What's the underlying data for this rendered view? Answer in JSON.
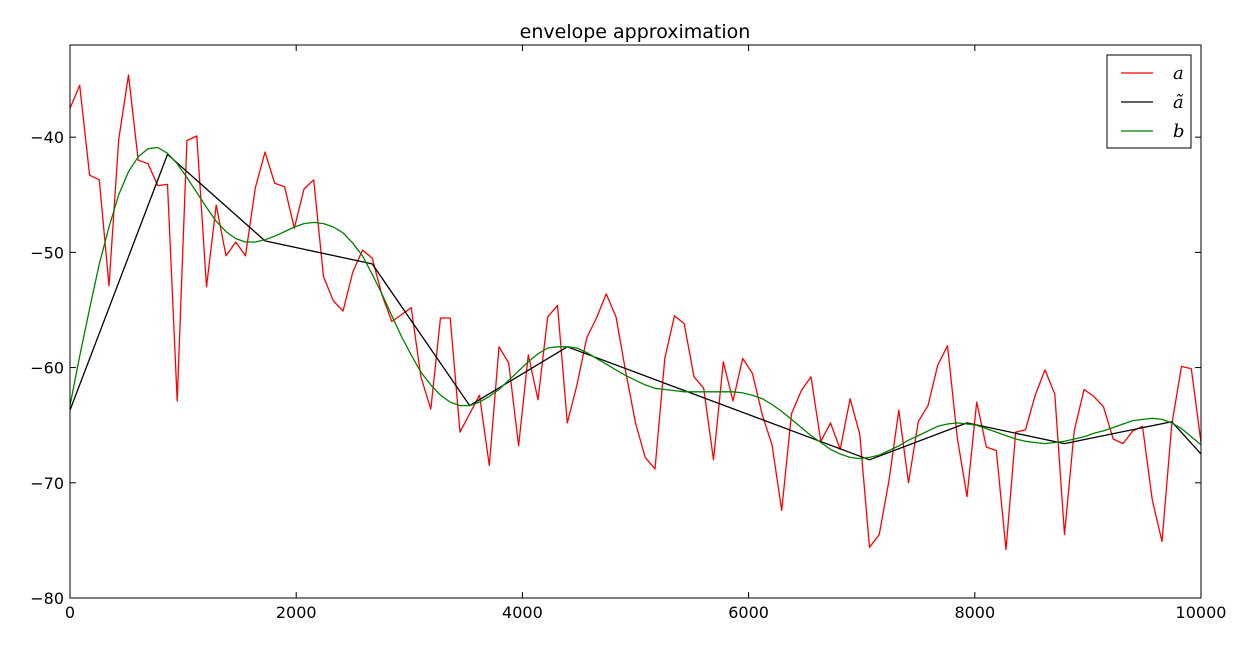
{
  "chart_data": {
    "type": "line",
    "title": "envelope approximation",
    "xlabel": "",
    "ylabel": "",
    "xlim": [
      0,
      10000
    ],
    "ylim": [
      -80,
      -32
    ],
    "xticks": [
      0,
      2000,
      4000,
      6000,
      8000,
      10000
    ],
    "xtick_labels": [
      "0",
      "2000",
      "4000",
      "6000",
      "8000",
      "10000"
    ],
    "yticks": [
      -80,
      -70,
      -60,
      -50,
      -40
    ],
    "ytick_labels": [
      "−80",
      "−70",
      "−60",
      "−50",
      "−40"
    ],
    "grid": false,
    "legend_position": "top-right",
    "series": [
      {
        "name": "a",
        "legend_label": "a",
        "color": "#ff0000",
        "x": [
          0,
          86,
          173,
          259,
          345,
          431,
          517,
          603,
          690,
          776,
          862,
          948,
          1034,
          1121,
          1207,
          1293,
          1379,
          1466,
          1552,
          1638,
          1724,
          1810,
          1897,
          1983,
          2069,
          2155,
          2241,
          2328,
          2414,
          2500,
          2586,
          2672,
          2759,
          2845,
          2931,
          3017,
          3103,
          3190,
          3276,
          3362,
          3448,
          3534,
          3621,
          3707,
          3793,
          3879,
          3966,
          4052,
          4138,
          4224,
          4310,
          4397,
          4483,
          4569,
          4655,
          4741,
          4828,
          4914,
          5000,
          5086,
          5172,
          5259,
          5345,
          5431,
          5517,
          5603,
          5690,
          5776,
          5862,
          5948,
          6034,
          6121,
          6207,
          6293,
          6379,
          6466,
          6552,
          6638,
          6724,
          6810,
          6897,
          6983,
          7069,
          7155,
          7241,
          7328,
          7414,
          7500,
          7586,
          7672,
          7759,
          7845,
          7931,
          8017,
          8103,
          8190,
          8276,
          8362,
          8448,
          8534,
          8621,
          8707,
          8793,
          8879,
          8966,
          9052,
          9138,
          9224,
          9310,
          9397,
          9483,
          9569,
          9655,
          9741,
          9828,
          9914,
          10000
        ],
        "y": [
          -37.5,
          -35.5,
          -43.3,
          -43.7,
          -52.9,
          -40.2,
          -34.6,
          -42.0,
          -42.3,
          -44.2,
          -44.1,
          -62.9,
          -40.3,
          -39.9,
          -53.0,
          -45.9,
          -50.3,
          -49.1,
          -50.3,
          -44.4,
          -41.3,
          -44.0,
          -44.3,
          -47.9,
          -44.5,
          -43.7,
          -52.1,
          -54.2,
          -55.1,
          -51.7,
          -49.8,
          -50.5,
          -53.7,
          -56.0,
          -55.4,
          -54.8,
          -60.8,
          -63.6,
          -55.7,
          -55.7,
          -65.6,
          -64.0,
          -62.4,
          -68.5,
          -58.2,
          -59.6,
          -66.8,
          -58.9,
          -62.8,
          -55.6,
          -54.6,
          -64.8,
          -61.5,
          -57.4,
          -55.7,
          -53.6,
          -55.6,
          -60.4,
          -64.8,
          -67.8,
          -68.8,
          -59.2,
          -55.5,
          -56.2,
          -60.8,
          -61.8,
          -68.0,
          -59.5,
          -62.9,
          -59.2,
          -60.5,
          -64.1,
          -66.7,
          -72.4,
          -64.0,
          -62.0,
          -60.8,
          -66.4,
          -64.8,
          -67.1,
          -62.7,
          -65.8,
          -75.6,
          -74.5,
          -69.8,
          -63.7,
          -70.0,
          -64.7,
          -63.3,
          -59.8,
          -58.1,
          -66.1,
          -71.2,
          -63.0,
          -66.9,
          -67.2,
          -75.8,
          -65.6,
          -65.4,
          -62.4,
          -60.2,
          -62.3,
          -74.5,
          -65.5,
          -61.9,
          -62.5,
          -63.4,
          -66.2,
          -66.6,
          -65.5,
          -65.1,
          -71.5,
          -75.1,
          -65.0,
          -59.9,
          -60.1,
          -66.5
        ]
      },
      {
        "name": "ã",
        "legend_label": "ã",
        "color": "#000000",
        "x": [
          0,
          862,
          1724,
          2672,
          3534,
          4397,
          7069,
          7931,
          8793,
          9741,
          10000
        ],
        "y": [
          -63.7,
          -41.5,
          -49.0,
          -51.0,
          -63.3,
          -58.2,
          -68.0,
          -64.8,
          -66.6,
          -64.7,
          -67.5
        ]
      },
      {
        "name": "b",
        "legend_label": "b",
        "color": "#008000",
        "x": [
          0,
          86,
          173,
          259,
          345,
          431,
          517,
          603,
          690,
          776,
          862,
          948,
          1034,
          1121,
          1207,
          1293,
          1379,
          1466,
          1552,
          1638,
          1724,
          1810,
          1897,
          1983,
          2069,
          2155,
          2241,
          2328,
          2414,
          2500,
          2586,
          2672,
          2759,
          2845,
          2931,
          3017,
          3103,
          3190,
          3276,
          3362,
          3448,
          3534,
          3621,
          3707,
          3793,
          3879,
          3966,
          4052,
          4138,
          4224,
          4310,
          4397,
          4483,
          4569,
          4655,
          4741,
          4828,
          4914,
          5000,
          5086,
          5172,
          5259,
          5345,
          5431,
          5517,
          5603,
          5690,
          5776,
          5862,
          5948,
          6034,
          6121,
          6207,
          6293,
          6379,
          6466,
          6552,
          6638,
          6724,
          6810,
          6897,
          6983,
          7069,
          7155,
          7241,
          7328,
          7414,
          7500,
          7586,
          7672,
          7759,
          7845,
          7931,
          8017,
          8103,
          8190,
          8276,
          8362,
          8448,
          8534,
          8621,
          8707,
          8793,
          8879,
          8966,
          9052,
          9138,
          9224,
          9310,
          9397,
          9483,
          9569,
          9655,
          9741,
          9828,
          9914,
          10000
        ],
        "y": [
          -63.3,
          -59.0,
          -54.9,
          -51.0,
          -47.8,
          -45.0,
          -43.0,
          -41.7,
          -41.0,
          -40.9,
          -41.4,
          -42.3,
          -43.5,
          -44.8,
          -46.1,
          -47.3,
          -48.2,
          -48.8,
          -49.1,
          -49.1,
          -48.9,
          -48.6,
          -48.2,
          -47.8,
          -47.5,
          -47.4,
          -47.5,
          -47.8,
          -48.3,
          -49.2,
          -50.3,
          -51.9,
          -53.6,
          -55.5,
          -57.3,
          -58.9,
          -60.4,
          -61.5,
          -62.4,
          -63.0,
          -63.3,
          -63.3,
          -63.0,
          -62.5,
          -61.9,
          -61.1,
          -60.3,
          -59.5,
          -58.8,
          -58.3,
          -58.2,
          -58.2,
          -58.3,
          -58.7,
          -59.2,
          -59.7,
          -60.2,
          -60.7,
          -61.1,
          -61.5,
          -61.8,
          -61.9,
          -62.0,
          -62.1,
          -62.1,
          -62.1,
          -62.1,
          -62.1,
          -62.1,
          -62.2,
          -62.4,
          -62.7,
          -63.2,
          -63.8,
          -64.5,
          -65.2,
          -65.9,
          -66.5,
          -67.1,
          -67.5,
          -67.8,
          -67.9,
          -67.8,
          -67.6,
          -67.2,
          -66.8,
          -66.3,
          -65.9,
          -65.5,
          -65.1,
          -64.9,
          -64.8,
          -64.9,
          -65.0,
          -65.3,
          -65.6,
          -65.9,
          -66.2,
          -66.4,
          -66.5,
          -66.6,
          -66.5,
          -66.4,
          -66.2,
          -66.0,
          -65.7,
          -65.5,
          -65.2,
          -64.9,
          -64.6,
          -64.5,
          -64.4,
          -64.5,
          -64.8,
          -65.3,
          -66.0,
          -66.7
        ]
      }
    ]
  }
}
